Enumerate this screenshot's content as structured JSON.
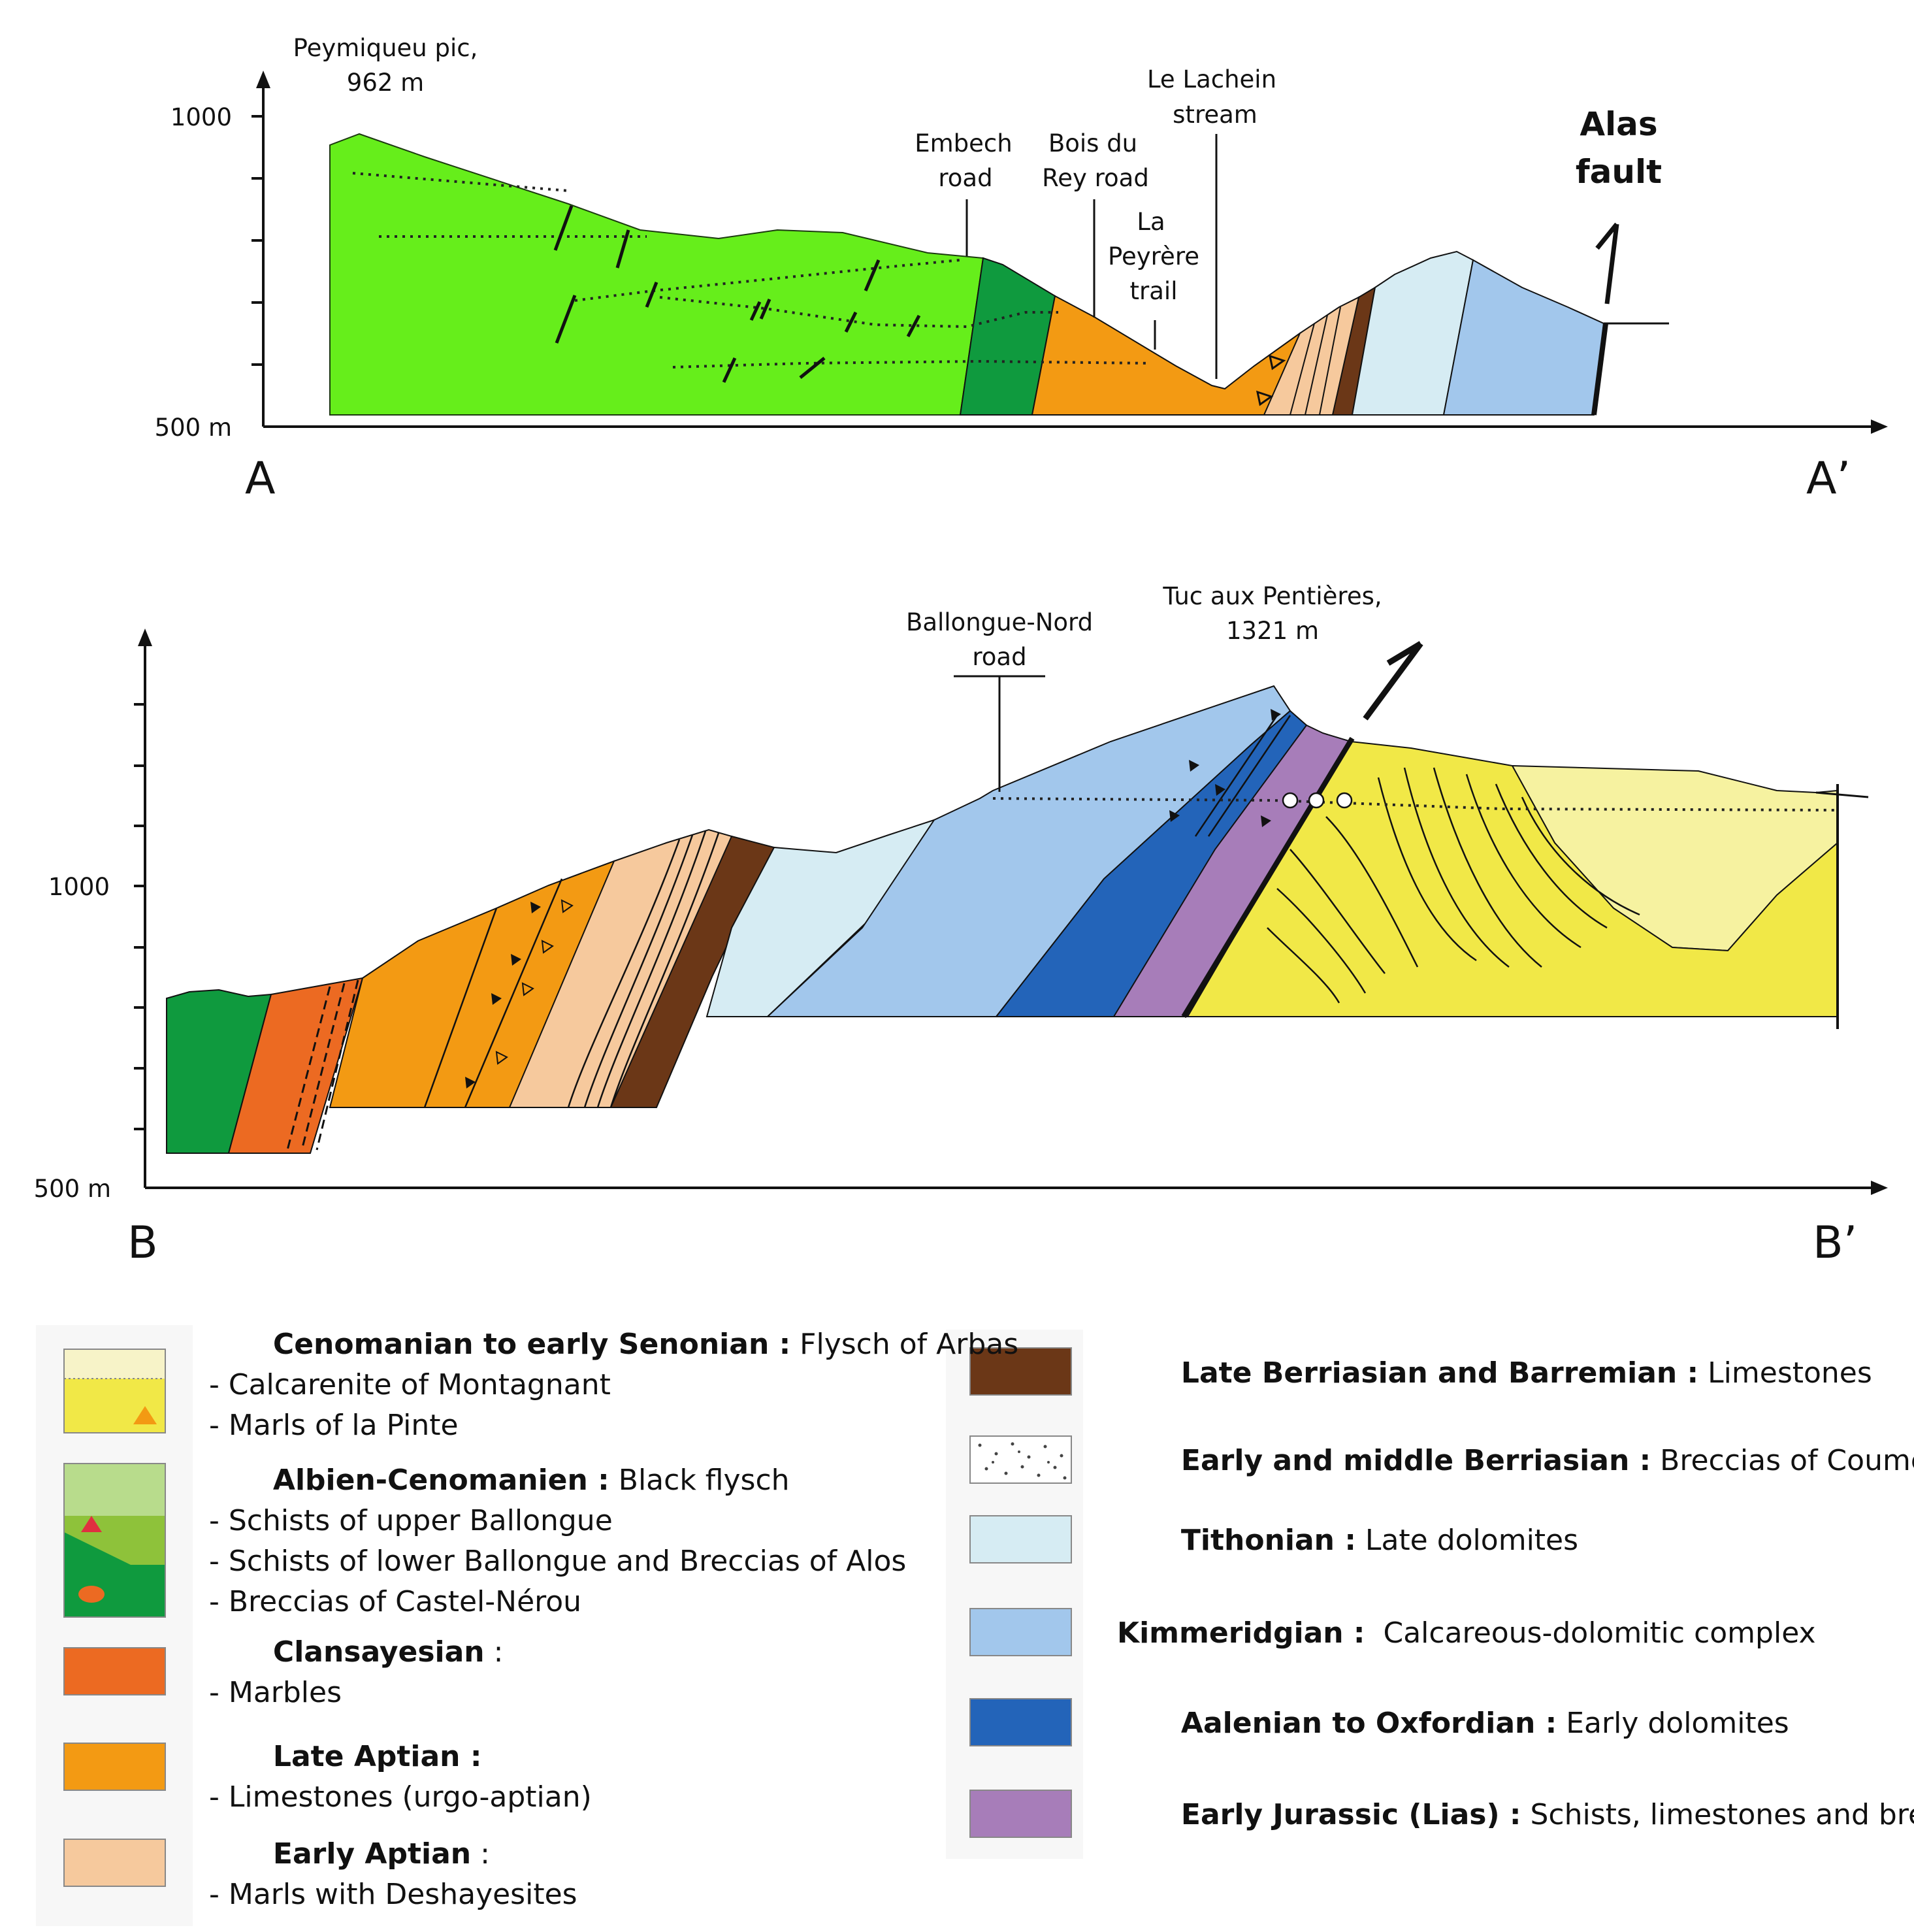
{
  "section_a": {
    "axis": {
      "y_top_label": "1000",
      "y_bottom_label": "500 m",
      "start_label": "A",
      "end_label": "A’"
    },
    "labels": {
      "peak_line1": "Peymiqueu pic,",
      "peak_line2": "962 m",
      "embech_line1": "Embech",
      "embech_line2": "road",
      "bois_line1": "Bois du",
      "bois_line2": "Rey road",
      "peyrere_line1": "La",
      "peyrere_line2": "Peyrère",
      "peyrere_line3": "trail",
      "lachein_line1": "Le Lachein",
      "lachein_line2": "stream",
      "alas_line1": "Alas",
      "alas_line2": "fault"
    }
  },
  "section_b": {
    "axis": {
      "y_mid_label": "1000",
      "y_bottom_label": "500 m",
      "start_label": "B",
      "end_label": "B’"
    },
    "labels": {
      "ballongue_line1": "Ballongue-Nord",
      "ballongue_line2": "road",
      "tuc_line1": "Tuc aux Pentières,",
      "tuc_line2": "1321 m"
    }
  },
  "colors": {
    "albian_light": "#66ee1b",
    "albian_dark": "#0f9a3e",
    "clansayesian": "#ec6a22",
    "late_aptian": "#f39a13",
    "early_aptian": "#f6c99d",
    "berriasian_barremian": "#6b3717",
    "tithonian": "#d6ecf3",
    "kimmeridgian": "#a2c7ec",
    "aalenian_oxfordian": "#2364b9",
    "lias": "#a77db9",
    "cenomanian_flysch": "#f1e847",
    "cenomanian_light": "#f6f2a0"
  },
  "legend": {
    "left": [
      {
        "title": "Cenomanian to early Senonian :",
        "desc": " Flysch of Arbas",
        "lines": [
          "- Calcarenite of Montagnant",
          "- Marls of la Pinte"
        ]
      },
      {
        "title": "Albien-Cenomanien :",
        "desc": " Black flysch",
        "lines": [
          "- Schists of upper Ballongue",
          "- Schists of lower Ballongue and Breccias of Alos",
          "- Breccias of Castel-Nérou"
        ]
      },
      {
        "title": "Clansayesian",
        "desc": " :",
        "lines": [
          "- Marbles"
        ]
      },
      {
        "title": "Late Aptian :",
        "desc": "",
        "lines": [
          "- Limestones (urgo-aptian)"
        ]
      },
      {
        "title": "Early Aptian",
        "desc": " :",
        "lines": [
          "- Marls with Deshayesites"
        ]
      }
    ],
    "right": [
      {
        "title": "Late Berriasian and Barremian :",
        "desc": " Limestones"
      },
      {
        "title": "Early and middle Berriasian :",
        "desc": " Breccias of Coumette"
      },
      {
        "title": "Tithonian :",
        "desc": " Late dolomites"
      },
      {
        "title": "Kimmeridgian :",
        "desc": "  Calcareous-dolomitic complex"
      },
      {
        "title": "Aalenian to Oxfordian :",
        "desc": " Early dolomites"
      },
      {
        "title": "Early Jurassic (Lias) :",
        "desc": " Schists, limestones and breccias"
      }
    ]
  }
}
